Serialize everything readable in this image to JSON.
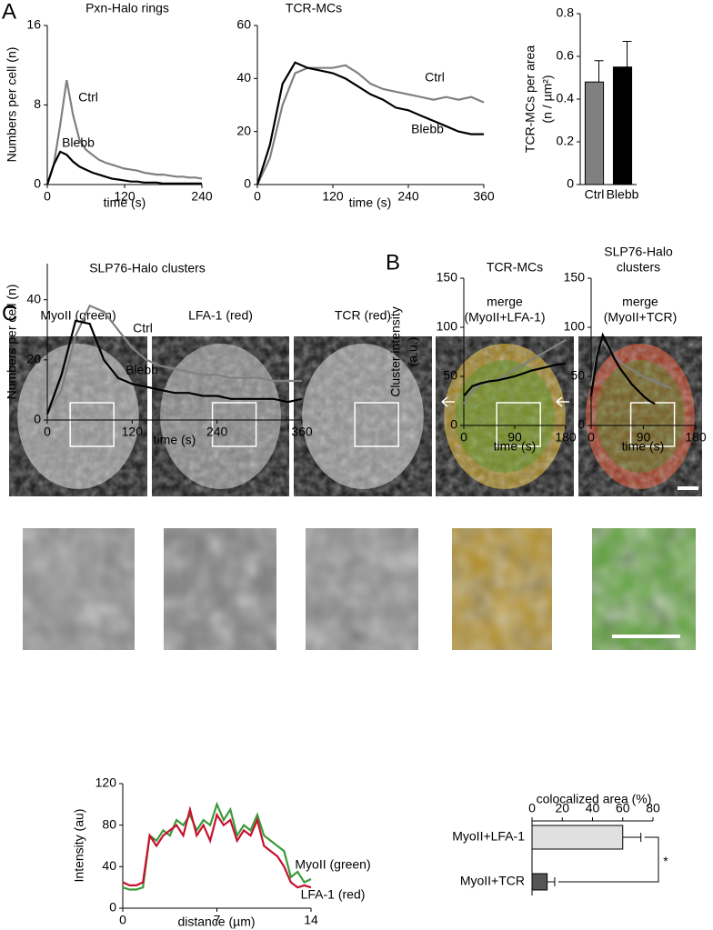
{
  "panel_letters": [
    "A",
    "B",
    "C"
  ],
  "image_labels": [
    [
      "MyoII (green)"
    ],
    [
      "LFA-1 (red)"
    ],
    [
      "TCR (red)"
    ],
    [
      "merge",
      "(MyoII+LFA-1)"
    ],
    [
      "merge",
      "(MyoII+TCR)"
    ]
  ],
  "chart_data": [
    {
      "type": "line",
      "title": "Pxn-Halo rings",
      "x_label": "time (s)",
      "y_label": "Numbers per cell (n)",
      "x": [
        0,
        10,
        20,
        30,
        40,
        50,
        60,
        70,
        80,
        90,
        100,
        110,
        120,
        130,
        140,
        150,
        160,
        170,
        180,
        190,
        200,
        210,
        220,
        230,
        240
      ],
      "series": [
        {
          "name": "Ctrl",
          "color": "#808080",
          "values": [
            0,
            2,
            6,
            10.5,
            7,
            4.5,
            3.5,
            3,
            2.5,
            2.2,
            2,
            1.8,
            1.6,
            1.5,
            1.4,
            1.2,
            1.1,
            1,
            1,
            0.9,
            0.8,
            0.8,
            0.7,
            0.7,
            0.6
          ]
        },
        {
          "name": "Blebb",
          "color": "#000000",
          "values": [
            0,
            2,
            3.3,
            3,
            2.3,
            1.8,
            1.5,
            1.2,
            1,
            0.8,
            0.6,
            0.5,
            0.4,
            0.3,
            0.3,
            0.2,
            0.2,
            0.2,
            0.1,
            0.1,
            0.1,
            0.1,
            0.1,
            0.1,
            0.1
          ]
        }
      ],
      "xlim": [
        0,
        240
      ],
      "xticks": [
        0,
        120,
        240
      ],
      "ylim": [
        0,
        16
      ],
      "yticks": [
        0,
        8,
        16
      ]
    },
    {
      "type": "line",
      "title": "TCR-MCs",
      "x_label": "time (s)",
      "x": [
        0,
        20,
        40,
        60,
        80,
        100,
        120,
        140,
        160,
        180,
        200,
        220,
        240,
        260,
        280,
        300,
        320,
        340,
        360
      ],
      "series": [
        {
          "name": "Ctrl",
          "color": "#808080",
          "values": [
            0,
            10,
            30,
            42,
            44,
            44,
            44,
            45,
            42,
            38,
            36,
            35,
            34,
            33,
            32,
            33,
            32,
            33,
            31
          ]
        },
        {
          "name": "Blebb",
          "color": "#000000",
          "values": [
            0,
            15,
            38,
            46,
            44,
            43,
            42,
            40,
            37,
            34,
            32,
            29,
            28,
            26,
            24,
            22,
            20,
            19,
            19
          ]
        }
      ],
      "xlim": [
        0,
        360
      ],
      "xticks": [
        0,
        120,
        240,
        360
      ],
      "ylim": [
        0,
        60
      ],
      "yticks": [
        0,
        20,
        40,
        60
      ]
    },
    {
      "type": "bar",
      "y_label": [
        "TCR-MCs per area",
        "(n / µm²)"
      ],
      "categories": [
        "Ctrl",
        "Blebb"
      ],
      "values": [
        0.48,
        0.55
      ],
      "errors": [
        0.1,
        0.12
      ],
      "colors": [
        "#808080",
        "#000000"
      ],
      "ylim": [
        0,
        0.8
      ],
      "yticks": [
        0,
        0.2,
        0.4,
        0.6,
        0.8
      ]
    },
    {
      "type": "line",
      "title": "SLP76-Halo clusters",
      "x_label": "time (s)",
      "y_label": "Numbers per cell (n)",
      "x": [
        0,
        20,
        40,
        60,
        80,
        100,
        120,
        140,
        160,
        180,
        200,
        220,
        240,
        260,
        280,
        300,
        320,
        340,
        360
      ],
      "series": [
        {
          "name": "Ctrl",
          "color": "#808080",
          "values": [
            2,
            10,
            28,
            38,
            36,
            30,
            24,
            20,
            18,
            17,
            16,
            15,
            15,
            14,
            14,
            14,
            13,
            13,
            13
          ]
        },
        {
          "name": "Blebb",
          "color": "#000000",
          "values": [
            2,
            15,
            33,
            32,
            20,
            14,
            12,
            11,
            10,
            9,
            9,
            8,
            8,
            7,
            7,
            7,
            7,
            6,
            7
          ]
        }
      ],
      "xlim": [
        0,
        360
      ],
      "xticks": [
        0,
        120,
        240,
        360
      ],
      "ylim": [
        0,
        52
      ],
      "yticks": [
        0,
        20,
        40
      ]
    },
    {
      "type": "line",
      "title": "TCR-MCs",
      "x_label": "time (s)",
      "y_label": [
        "Cluster intensity",
        "(a.u.)"
      ],
      "x": [
        0,
        15,
        30,
        45,
        60,
        75,
        90,
        105,
        120,
        135,
        150,
        165,
        180
      ],
      "series": [
        {
          "color": "#808080",
          "values": [
            22,
            35,
            42,
            45,
            47,
            52,
            57,
            62,
            67,
            72,
            77,
            82,
            87
          ]
        },
        {
          "color": "#000000",
          "values": [
            30,
            40,
            43,
            45,
            46,
            48,
            50,
            53,
            56,
            58,
            60,
            62,
            63
          ]
        }
      ],
      "xlim": [
        0,
        180
      ],
      "xticks": [
        0,
        90,
        180
      ],
      "ylim": [
        0,
        150
      ],
      "yticks": [
        0,
        50,
        100,
        150
      ]
    },
    {
      "type": "line",
      "title": [
        "SLP76-Halo",
        "clusters"
      ],
      "x_label": "time (s)",
      "x": [
        0,
        10,
        20,
        30,
        40,
        50,
        60,
        70,
        80,
        90,
        100,
        110,
        120,
        130,
        140
      ],
      "series": [
        {
          "color": "#808080",
          "values": [
            40,
            75,
            85,
            78,
            70,
            65,
            60,
            57,
            53,
            50,
            47,
            45,
            42,
            40,
            38
          ]
        },
        {
          "color": "#000000",
          "values": [
            30,
            70,
            92,
            80,
            68,
            58,
            50,
            42,
            36,
            30,
            25,
            22,
            null,
            null,
            null
          ]
        }
      ],
      "xlim": [
        0,
        180
      ],
      "xticks": [
        0,
        90,
        180
      ],
      "ylim": [
        0,
        150
      ],
      "yticks": [
        0,
        50,
        100,
        150
      ]
    },
    {
      "type": "line",
      "x_label": "distance (µm)",
      "y_label": "Intensity (au)",
      "x": [
        0,
        0.5,
        1,
        1.5,
        2,
        2.5,
        3,
        3.5,
        4,
        4.5,
        5,
        5.5,
        6,
        6.5,
        7,
        7.5,
        8,
        8.5,
        9,
        9.5,
        10,
        10.5,
        11,
        11.5,
        12,
        12.5,
        13,
        13.5,
        14
      ],
      "series": [
        {
          "name": "MyoII (green)",
          "color": "#3a9a3a",
          "values": [
            20,
            18,
            18,
            20,
            70,
            65,
            75,
            70,
            85,
            80,
            90,
            75,
            85,
            80,
            100,
            85,
            95,
            70,
            80,
            75,
            90,
            70,
            65,
            60,
            55,
            30,
            35,
            25,
            28
          ]
        },
        {
          "name": "LFA-1 (red)",
          "color": "#c8102e",
          "values": [
            25,
            22,
            22,
            25,
            70,
            60,
            70,
            75,
            80,
            70,
            95,
            70,
            80,
            65,
            90,
            80,
            85,
            65,
            75,
            70,
            85,
            60,
            55,
            50,
            40,
            25,
            20,
            22,
            20
          ]
        }
      ],
      "xlim": [
        0,
        14
      ],
      "xticks": [
        0,
        7,
        14
      ],
      "ylim": [
        0,
        120
      ],
      "yticks": [
        0,
        40,
        80,
        120
      ]
    },
    {
      "type": "barh",
      "x_label": "colocalized area (%)",
      "annotation": "*",
      "categories": [
        "MyoII+LFA-1",
        "MyoII+TCR"
      ],
      "values": [
        60,
        10
      ],
      "errors": [
        12,
        5
      ],
      "colors": [
        "#e0e0e0",
        "#555555"
      ],
      "xlim": [
        0,
        80
      ],
      "xticks": [
        0,
        20,
        40,
        60,
        80
      ]
    }
  ]
}
